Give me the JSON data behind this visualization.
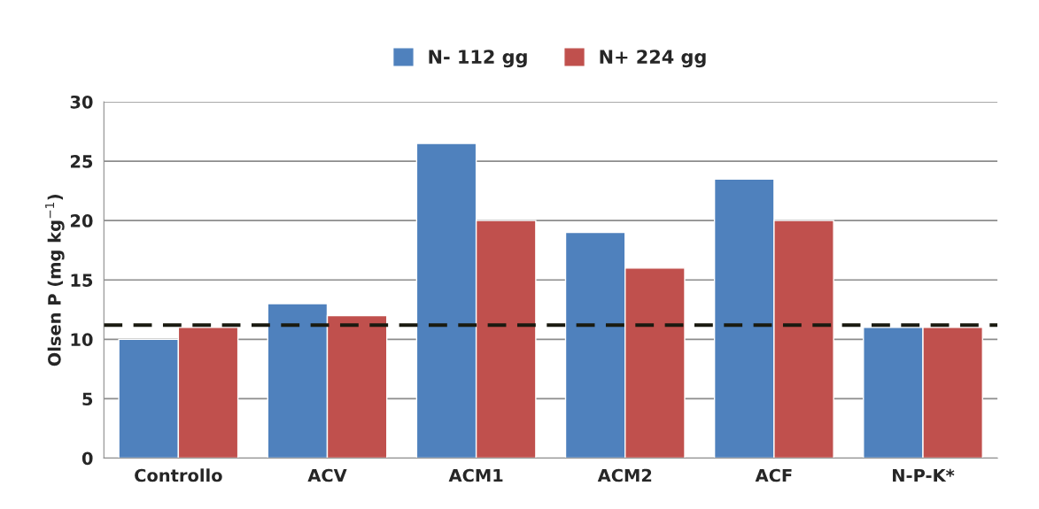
{
  "chart_data": {
    "type": "bar",
    "ylabel": "Olsen P (mg kg$^{−1}$)",
    "categories": [
      "Controllo",
      "ACV",
      "ACM1",
      "ACM2",
      "ACF",
      "N-P-K*"
    ],
    "series": [
      {
        "name": "N- 112 gg",
        "color": "#4f81bd",
        "values": [
          10,
          13,
          26.5,
          19,
          23.5,
          11
        ]
      },
      {
        "name": "N+ 224 gg",
        "color": "#c0504d",
        "values": [
          11,
          12,
          20,
          16,
          20,
          11
        ]
      }
    ],
    "ylim": [
      0,
      30
    ],
    "yticks": [
      0,
      5,
      10,
      15,
      20,
      25,
      30
    ],
    "ref_lines": [
      {
        "axis": "y",
        "value": 11.2,
        "color": "#1a1a10",
        "line_style": "dashed"
      }
    ],
    "grid": "y",
    "legend": "top"
  }
}
